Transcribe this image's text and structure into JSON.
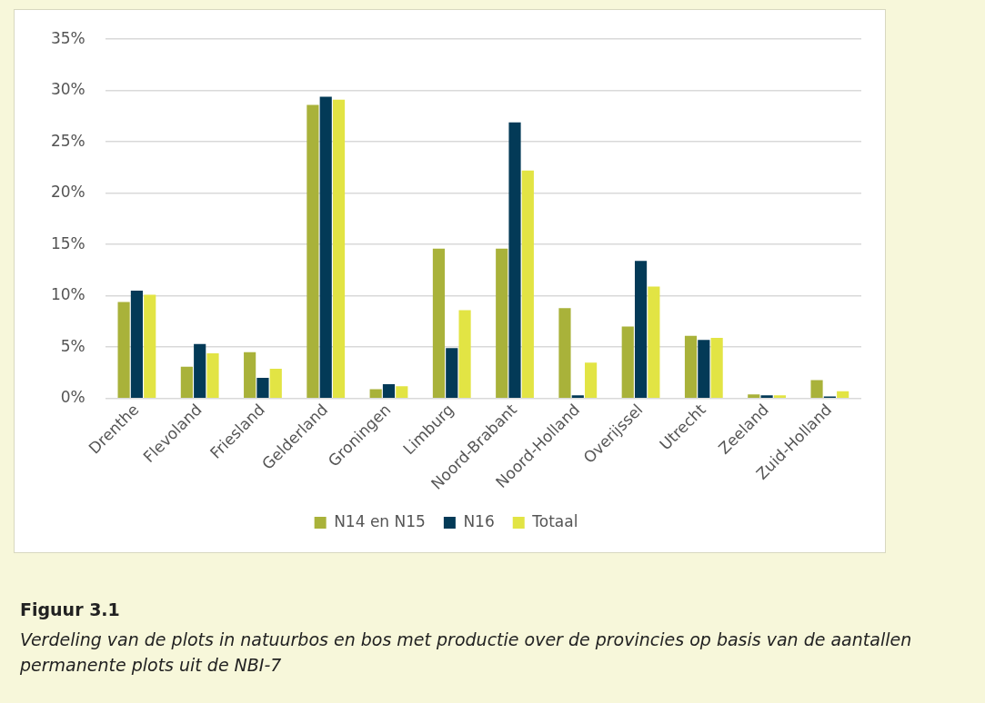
{
  "chart_data": {
    "type": "bar",
    "categories": [
      "Drenthe",
      "Flevoland",
      "Friesland",
      "Gelderland",
      "Groningen",
      "Limburg",
      "Noord-Brabant",
      "Noord-Holland",
      "Overijssel",
      "Utrecht",
      "Zeeland",
      "Zuid-Holland"
    ],
    "series": [
      {
        "name": "N14 en N15",
        "color": "#a9b23a",
        "values": [
          9.4,
          3.1,
          4.5,
          28.6,
          0.9,
          14.6,
          14.6,
          8.8,
          7.0,
          6.1,
          0.4,
          1.8
        ]
      },
      {
        "name": "N16",
        "color": "#033a57",
        "values": [
          10.5,
          5.3,
          2.0,
          29.4,
          1.4,
          4.9,
          26.9,
          0.3,
          13.4,
          5.7,
          0.3,
          0.2
        ]
      },
      {
        "name": "Totaal",
        "color": "#e2e444",
        "values": [
          10.1,
          4.4,
          2.9,
          29.1,
          1.2,
          8.6,
          22.2,
          3.5,
          10.9,
          5.9,
          0.3,
          0.7
        ]
      }
    ],
    "ylim": [
      0,
      35
    ],
    "yticks": [
      {
        "value": 0,
        "label": "0%"
      },
      {
        "value": 5,
        "label": "5%"
      },
      {
        "value": 10,
        "label": "10%"
      },
      {
        "value": 15,
        "label": "15%"
      },
      {
        "value": 20,
        "label": "20%"
      },
      {
        "value": 25,
        "label": "25%"
      },
      {
        "value": 30,
        "label": "30%"
      },
      {
        "value": 35,
        "label": "35%"
      }
    ],
    "grid": "y",
    "legend": "bottom",
    "annotations": [
      "Figuur 3.1",
      "Verdeling van de plots in natuurbos en bos met productie over de provincies op basis van de aantallen permanente plots uit de NBI-7"
    ]
  }
}
